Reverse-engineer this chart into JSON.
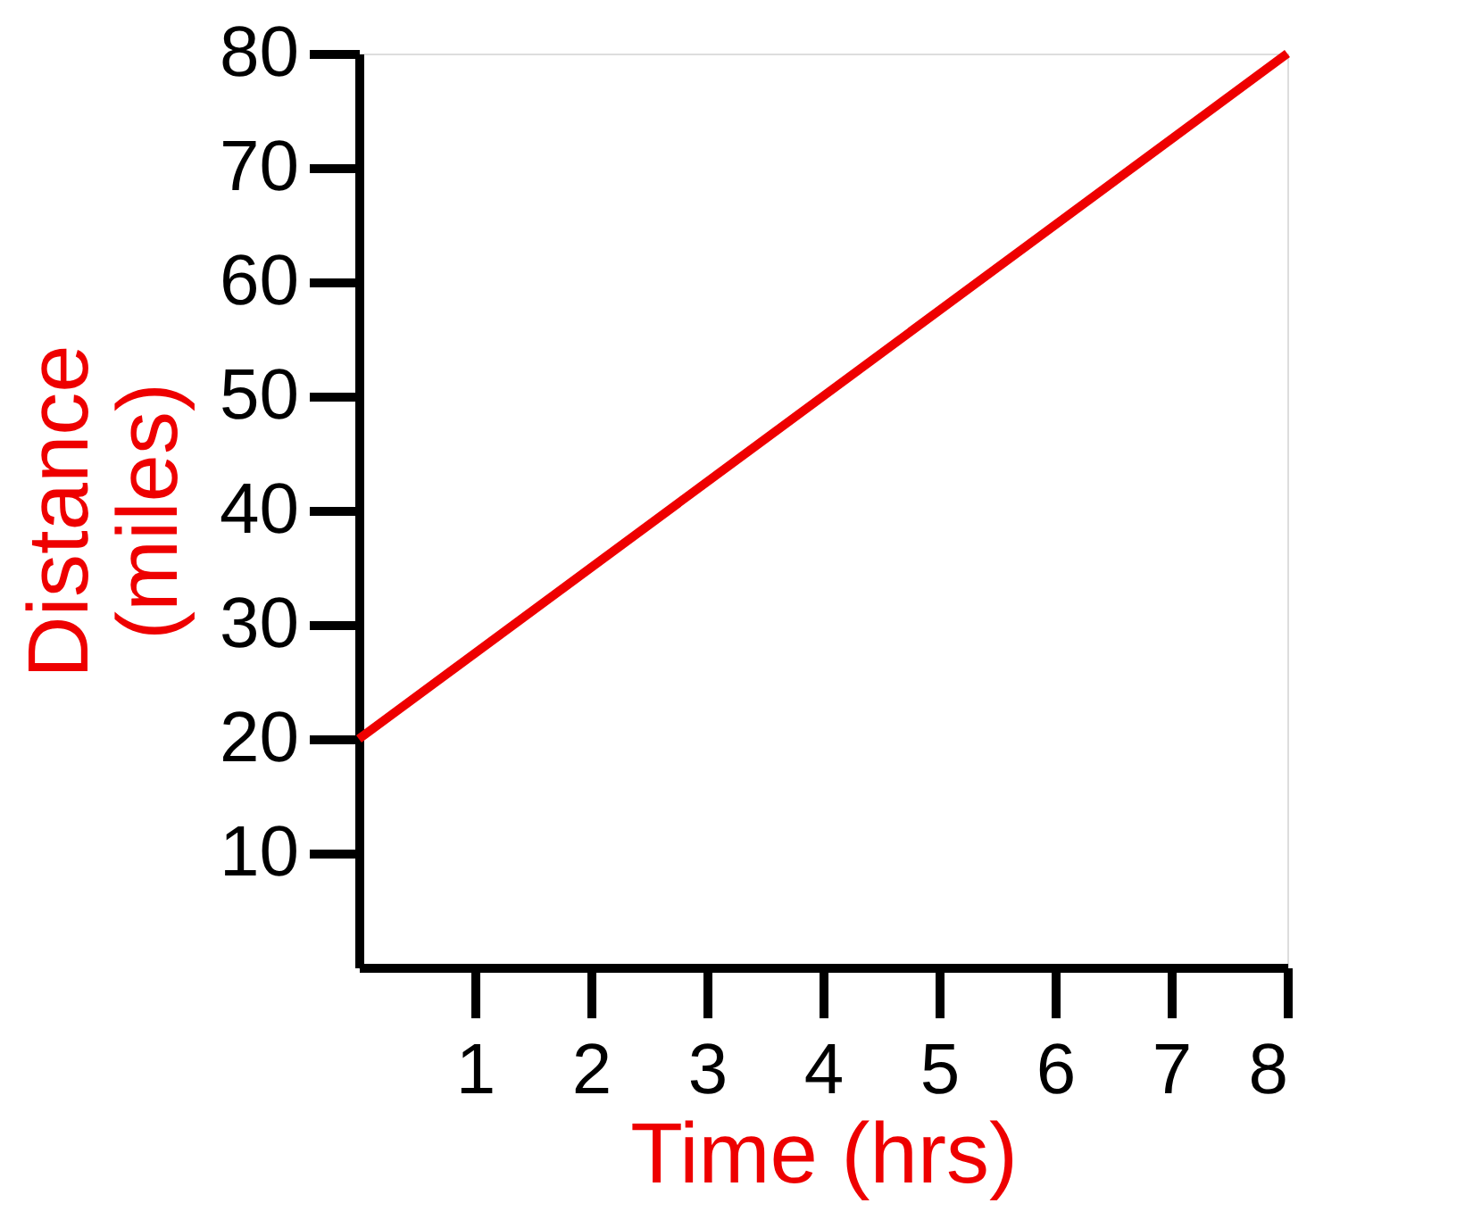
{
  "chart_data": {
    "type": "line",
    "xlabel": "Time (hrs)",
    "ylabel": "Distance (miles)",
    "x": [
      0,
      8
    ],
    "series": [
      {
        "color": "#ee0000",
        "values": [
          20,
          80
        ]
      }
    ],
    "xlim": [
      0,
      8
    ],
    "xticks": [
      1,
      2,
      3,
      4,
      5,
      6,
      7,
      8
    ],
    "ylim": [
      0,
      80
    ],
    "yticks": [
      10,
      20,
      30,
      40,
      50,
      60,
      70,
      80
    ],
    "grid": false,
    "legend": false,
    "marker": "none",
    "line_style": "solid"
  }
}
